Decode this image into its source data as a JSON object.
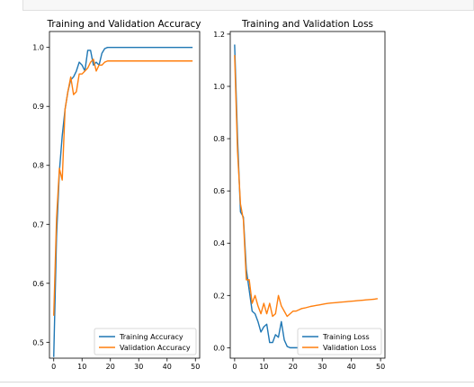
{
  "chart_data": [
    {
      "type": "line",
      "title": "Training and Validation Accuracy",
      "xlabel": "",
      "ylabel": "",
      "xlim": [
        -1.5,
        51.5
      ],
      "ylim": [
        0.473,
        1.027
      ],
      "x_ticks": [
        0,
        10,
        20,
        30,
        40,
        50
      ],
      "y_ticks": [
        0.5,
        0.6,
        0.7,
        0.8,
        0.9,
        1.0
      ],
      "x_tick_labels": [
        "0",
        "10",
        "20",
        "30",
        "40",
        "50"
      ],
      "y_tick_labels": [
        "0.5",
        "0.6",
        "0.7",
        "0.8",
        "0.9",
        "1.0"
      ],
      "legend_position": "lower-right",
      "series": [
        {
          "name": "Training Accuracy",
          "color": "#1f77b4",
          "x": [
            0,
            1,
            2,
            3,
            4,
            5,
            6,
            7,
            8,
            9,
            10,
            11,
            12,
            13,
            14,
            15,
            16,
            17,
            18,
            19,
            20,
            21,
            22,
            23,
            24,
            25,
            26,
            27,
            28,
            29,
            30,
            31,
            32,
            33,
            34,
            35,
            36,
            37,
            38,
            39,
            40,
            41,
            42,
            43,
            44,
            45,
            46,
            47,
            48,
            49
          ],
          "y": [
            0.475,
            0.68,
            0.79,
            0.85,
            0.895,
            0.925,
            0.945,
            0.95,
            0.96,
            0.975,
            0.97,
            0.96,
            0.995,
            0.995,
            0.97,
            0.975,
            0.97,
            0.99,
            0.998,
            1.0,
            1.0,
            1.0,
            1.0,
            1.0,
            1.0,
            1.0,
            1.0,
            1.0,
            1.0,
            1.0,
            1.0,
            1.0,
            1.0,
            1.0,
            1.0,
            1.0,
            1.0,
            1.0,
            1.0,
            1.0,
            1.0,
            1.0,
            1.0,
            1.0,
            1.0,
            1.0,
            1.0,
            1.0,
            1.0,
            1.0
          ]
        },
        {
          "name": "Validation Accuracy",
          "color": "#ff7f0e",
          "x": [
            0,
            1,
            2,
            3,
            4,
            5,
            6,
            7,
            8,
            9,
            10,
            11,
            12,
            13,
            14,
            15,
            16,
            17,
            18,
            19,
            20,
            21,
            22,
            23,
            24,
            25,
            26,
            27,
            28,
            29,
            30,
            31,
            32,
            33,
            34,
            35,
            36,
            37,
            38,
            39,
            40,
            41,
            42,
            43,
            44,
            45,
            46,
            47,
            48,
            49
          ],
          "y": [
            0.545,
            0.71,
            0.795,
            0.775,
            0.895,
            0.925,
            0.95,
            0.92,
            0.925,
            0.955,
            0.955,
            0.96,
            0.965,
            0.975,
            0.98,
            0.96,
            0.97,
            0.97,
            0.975,
            0.977,
            0.977,
            0.977,
            0.977,
            0.977,
            0.977,
            0.977,
            0.977,
            0.977,
            0.977,
            0.977,
            0.977,
            0.977,
            0.977,
            0.977,
            0.977,
            0.977,
            0.977,
            0.977,
            0.977,
            0.977,
            0.977,
            0.977,
            0.977,
            0.977,
            0.977,
            0.977,
            0.977,
            0.977,
            0.977,
            0.977
          ]
        }
      ]
    },
    {
      "type": "line",
      "title": "Training and Validation Loss",
      "xlabel": "",
      "ylabel": "",
      "xlim": [
        -1.5,
        51.5
      ],
      "ylim": [
        -0.04,
        1.21
      ],
      "x_ticks": [
        0,
        10,
        20,
        30,
        40,
        50
      ],
      "y_ticks": [
        0.0,
        0.2,
        0.4,
        0.6,
        0.8,
        1.0,
        1.2
      ],
      "x_tick_labels": [
        "0",
        "10",
        "20",
        "30",
        "40",
        "50"
      ],
      "y_tick_labels": [
        "0.0",
        "0.2",
        "0.4",
        "0.6",
        "0.8",
        "1.0",
        "1.2"
      ],
      "legend_position": "lower-right",
      "series": [
        {
          "name": "Training Loss",
          "color": "#1f77b4",
          "x": [
            0,
            1,
            2,
            3,
            4,
            5,
            6,
            7,
            8,
            9,
            10,
            11,
            12,
            13,
            14,
            15,
            16,
            17,
            18,
            19,
            20,
            21,
            22,
            23,
            24,
            25,
            26,
            27,
            28,
            29,
            30,
            31,
            32,
            33,
            34,
            35,
            36,
            37,
            38,
            39,
            40,
            41,
            42,
            43,
            44,
            45,
            46,
            47,
            48,
            49
          ],
          "y": [
            1.16,
            0.8,
            0.52,
            0.5,
            0.3,
            0.22,
            0.14,
            0.13,
            0.1,
            0.06,
            0.08,
            0.09,
            0.02,
            0.02,
            0.05,
            0.04,
            0.1,
            0.03,
            0.005,
            0.0,
            0.0,
            0.0,
            0.0,
            0.0,
            0.0,
            0.0,
            0.0,
            0.0,
            0.0,
            0.0,
            0.0,
            0.0,
            0.0,
            0.0,
            0.0,
            0.0,
            0.0,
            0.0,
            0.0,
            0.0,
            0.0,
            0.0,
            0.0,
            0.0,
            0.0,
            0.0,
            0.0,
            0.0,
            0.0,
            0.0
          ]
        },
        {
          "name": "Validation Loss",
          "color": "#ff7f0e",
          "x": [
            0,
            1,
            2,
            3,
            4,
            5,
            6,
            7,
            8,
            9,
            10,
            11,
            12,
            13,
            14,
            15,
            16,
            17,
            18,
            19,
            20,
            21,
            22,
            23,
            24,
            25,
            26,
            27,
            28,
            29,
            30,
            31,
            32,
            33,
            34,
            35,
            36,
            37,
            38,
            39,
            40,
            41,
            42,
            43,
            44,
            45,
            46,
            47,
            48,
            49
          ],
          "y": [
            1.12,
            0.75,
            0.55,
            0.49,
            0.26,
            0.26,
            0.17,
            0.2,
            0.16,
            0.13,
            0.17,
            0.13,
            0.17,
            0.12,
            0.13,
            0.2,
            0.16,
            0.14,
            0.12,
            0.13,
            0.14,
            0.14,
            0.145,
            0.15,
            0.152,
            0.155,
            0.158,
            0.16,
            0.162,
            0.164,
            0.166,
            0.168,
            0.17,
            0.171,
            0.172,
            0.173,
            0.174,
            0.175,
            0.176,
            0.177,
            0.178,
            0.179,
            0.18,
            0.181,
            0.182,
            0.183,
            0.184,
            0.185,
            0.186,
            0.188
          ]
        }
      ]
    }
  ]
}
